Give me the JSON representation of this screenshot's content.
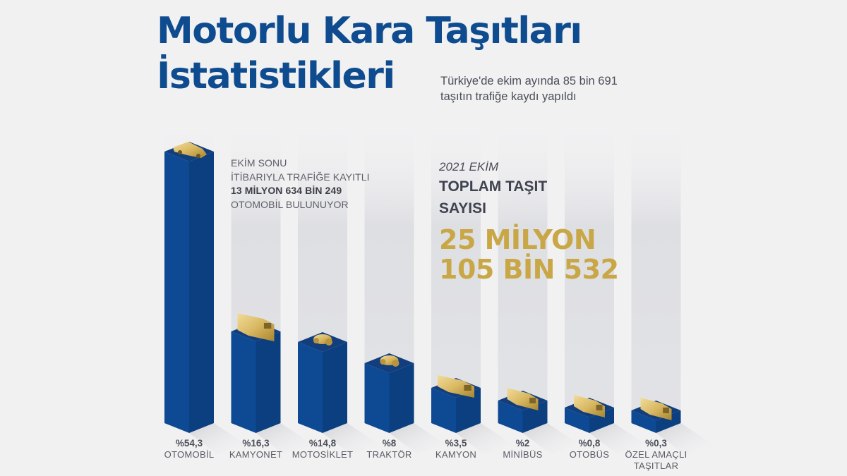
{
  "header": {
    "title_line1": "Motorlu Kara Taşıtları",
    "title_line2": "İstatistikleri",
    "subtitle_line1": "Türkiye'de ekim ayında 85 bin 691",
    "subtitle_line2": "taşıtın trafiğe kaydı yapıldı"
  },
  "note": {
    "line1": "EKİM SONU",
    "line2": "İTİBARIYLA TRAFİĞE KAYITLI",
    "line3": "13 MİLYON 634 BİN 249",
    "line4": "OTOMOBİL BULUNUYOR"
  },
  "total": {
    "period": "2021 EKİM",
    "label_line1": "TOPLAM TAŞIT",
    "label_line2": "SAYISI",
    "value_line1": "25 MİLYON",
    "value_line2": "105 BİN 532"
  },
  "colors": {
    "title": "#0f4c8f",
    "bar_front": "#0e4a93",
    "bar_side": "#0b3f80",
    "bar_top": "#123e7e",
    "icon_gold": "#d6b45a",
    "total_value": "#c9a746"
  },
  "chart_data": {
    "type": "bar",
    "title": "Motorlu Kara Taşıtları İstatistikleri",
    "subtitle": "Türkiye'de ekim ayında 85 bin 691 taşıtın trafiğe kaydı yapıldı",
    "unit": "%",
    "categories": [
      "OTOMOBİL",
      "KAMYONET",
      "MOTOSİKLET",
      "TRAKTÖR",
      "KAMYON",
      "MİNİBÜS",
      "OTOBÜS",
      "ÖZEL AMAÇLI TAŞITLAR"
    ],
    "values": [
      54.3,
      16.3,
      14.8,
      8,
      3.5,
      2,
      0.8,
      0.3
    ],
    "labels": [
      "%54,3",
      "%16,3",
      "%14,8",
      "%8",
      "%3,5",
      "%2",
      "%0,8",
      "%0,3"
    ],
    "icons": [
      "car-icon",
      "pickup-truck-icon",
      "motorcycle-icon",
      "tractor-icon",
      "truck-icon",
      "minibus-icon",
      "bus-icon",
      "special-vehicle-icon"
    ],
    "xlabel": "",
    "ylabel": "",
    "grid": false,
    "legend": "none",
    "annotations": [
      "EKİM SONU İTİBARIYLA TRAFİĞE KAYITLI 13 MİLYON 634 BİN 249 OTOMOBİL BULUNUYOR",
      "2021 EKİM TOPLAM TAŞIT SAYISI 25 MİLYON 105 BİN 532"
    ]
  }
}
